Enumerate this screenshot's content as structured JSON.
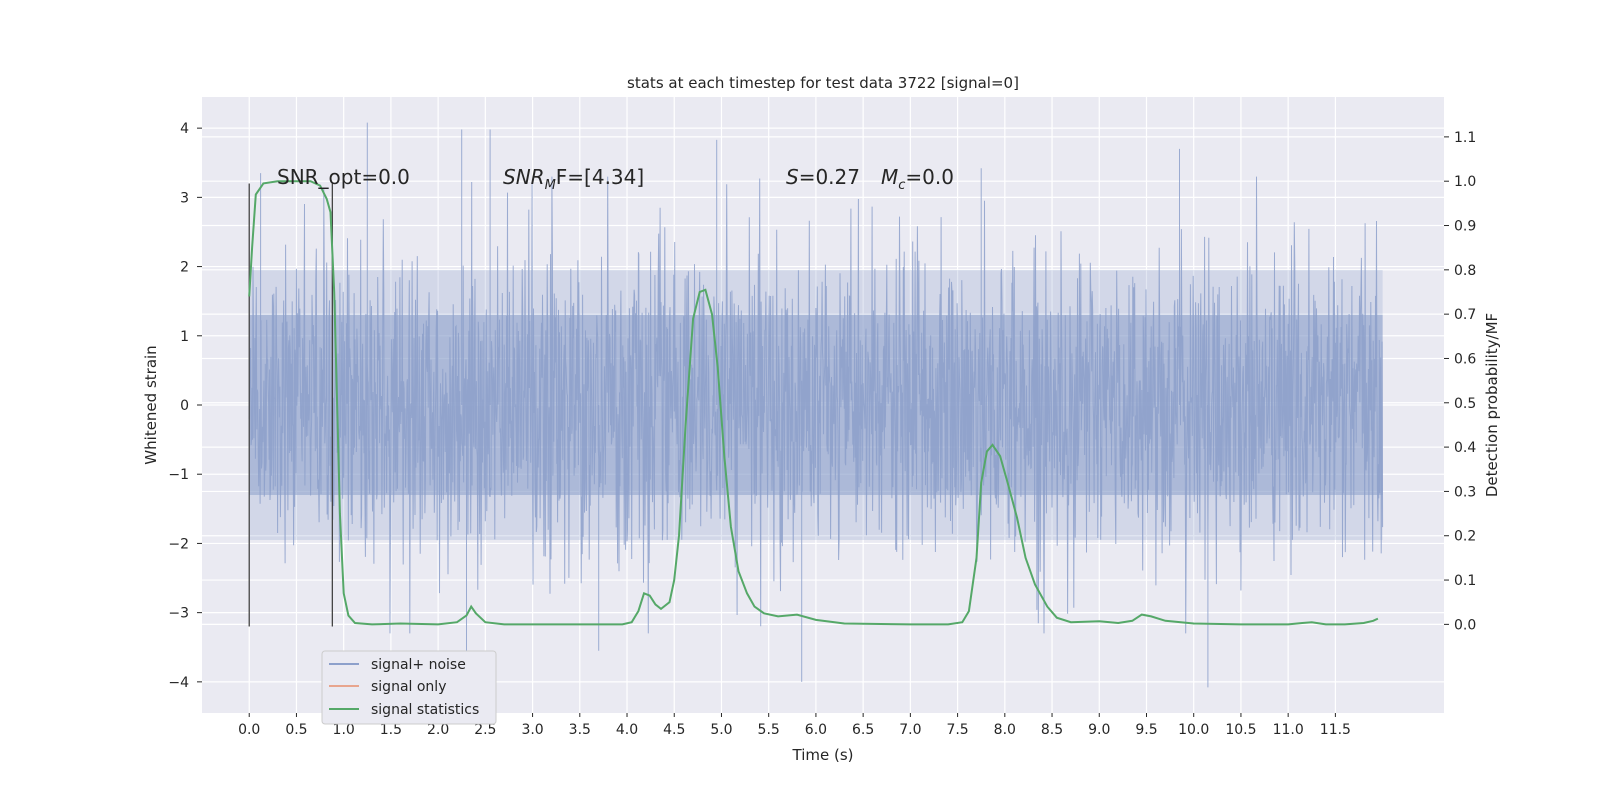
{
  "chart_data": {
    "type": "line",
    "title": "stats at each timestep for test data 3722 [signal=0]",
    "xlabel": "Time (s)",
    "ylabel": "Whitened strain",
    "y2label": "Detection probability/MF",
    "xlim": [
      -0.5,
      12.65
    ],
    "ylim": [
      -4.45,
      4.45
    ],
    "y2lim": [
      -0.2,
      1.19
    ],
    "x_ticks": [
      "0.0",
      "0.5",
      "1.0",
      "1.5",
      "2.0",
      "2.5",
      "3.0",
      "3.5",
      "4.0",
      "4.5",
      "5.0",
      "5.5",
      "6.0",
      "6.5",
      "7.0",
      "7.5",
      "8.0",
      "8.5",
      "9.0",
      "9.5",
      "10.0",
      "10.5",
      "11.0",
      "11.5"
    ],
    "y_ticks": [
      "4",
      "3",
      "2",
      "1",
      "0",
      "−1",
      "−2",
      "−3",
      "−4"
    ],
    "y2_ticks": [
      "1.1",
      "1.0",
      "0.9",
      "0.8",
      "0.7",
      "0.6",
      "0.5",
      "0.4",
      "0.3",
      "0.2",
      "0.1",
      "0.0"
    ],
    "grid": true,
    "legend_position": "bottom-left",
    "annotations": {
      "snr_opt": "SNR_opt=0.0",
      "snr_mf": "SNR",
      "snr_mf_sub": "M",
      "snr_mf_rest": "F=[4.34]",
      "s_label": "S",
      "s_value": "=0.27",
      "mc_label": "M",
      "mc_sub": "c",
      "mc_value": "=0.0"
    },
    "markers": {
      "window_start": 0.0,
      "window_end": 0.88,
      "y_range": [
        -3.2,
        3.2
      ]
    },
    "series": [
      {
        "name": "signal+ noise",
        "color": "#8da0cb",
        "style": "dense-noise",
        "x_range": [
          0.0,
          12.0
        ],
        "band_1sigma": 1.3,
        "band_2sigma": 1.95,
        "peaks": [
          {
            "x": 0.12,
            "y": 3.35
          },
          {
            "x": 1.25,
            "y": 4.08
          },
          {
            "x": 2.25,
            "y": 3.98
          },
          {
            "x": 2.55,
            "y": 3.98
          },
          {
            "x": 4.95,
            "y": 3.83
          },
          {
            "x": 5.85,
            "y": -4.0
          },
          {
            "x": 10.15,
            "y": -4.08
          },
          {
            "x": 9.85,
            "y": 3.7
          },
          {
            "x": 7.75,
            "y": 3.42
          },
          {
            "x": 2.3,
            "y": -3.65
          },
          {
            "x": 3.7,
            "y": -3.55
          }
        ]
      },
      {
        "name": "signal only",
        "color": "#e8a58e",
        "points": []
      },
      {
        "name": "signal statistics",
        "color": "#55a868",
        "axis": "right",
        "points": [
          [
            0.0,
            0.74
          ],
          [
            0.03,
            0.85
          ],
          [
            0.07,
            0.97
          ],
          [
            0.15,
            0.995
          ],
          [
            0.3,
            1.0
          ],
          [
            0.5,
            1.0
          ],
          [
            0.65,
            1.0
          ],
          [
            0.75,
            0.99
          ],
          [
            0.82,
            0.96
          ],
          [
            0.86,
            0.93
          ],
          [
            0.9,
            0.75
          ],
          [
            0.93,
            0.5
          ],
          [
            0.96,
            0.25
          ],
          [
            1.0,
            0.07
          ],
          [
            1.05,
            0.02
          ],
          [
            1.12,
            0.003
          ],
          [
            1.3,
            0.0
          ],
          [
            1.6,
            0.002
          ],
          [
            2.0,
            0.0
          ],
          [
            2.2,
            0.005
          ],
          [
            2.3,
            0.02
          ],
          [
            2.35,
            0.04
          ],
          [
            2.4,
            0.025
          ],
          [
            2.5,
            0.005
          ],
          [
            2.7,
            0.0
          ],
          [
            3.5,
            0.0
          ],
          [
            3.95,
            0.0
          ],
          [
            4.05,
            0.005
          ],
          [
            4.12,
            0.03
          ],
          [
            4.18,
            0.07
          ],
          [
            4.24,
            0.065
          ],
          [
            4.3,
            0.045
          ],
          [
            4.36,
            0.035
          ],
          [
            4.45,
            0.05
          ],
          [
            4.5,
            0.1
          ],
          [
            4.55,
            0.2
          ],
          [
            4.62,
            0.45
          ],
          [
            4.7,
            0.69
          ],
          [
            4.77,
            0.75
          ],
          [
            4.83,
            0.755
          ],
          [
            4.9,
            0.7
          ],
          [
            4.96,
            0.58
          ],
          [
            5.03,
            0.38
          ],
          [
            5.1,
            0.22
          ],
          [
            5.18,
            0.12
          ],
          [
            5.27,
            0.07
          ],
          [
            5.35,
            0.04
          ],
          [
            5.45,
            0.025
          ],
          [
            5.6,
            0.018
          ],
          [
            5.8,
            0.022
          ],
          [
            6.0,
            0.01
          ],
          [
            6.3,
            0.002
          ],
          [
            7.0,
            0.0
          ],
          [
            7.4,
            0.0
          ],
          [
            7.55,
            0.005
          ],
          [
            7.62,
            0.03
          ],
          [
            7.7,
            0.15
          ],
          [
            7.75,
            0.32
          ],
          [
            7.81,
            0.39
          ],
          [
            7.87,
            0.405
          ],
          [
            7.95,
            0.38
          ],
          [
            8.03,
            0.32
          ],
          [
            8.13,
            0.24
          ],
          [
            8.22,
            0.15
          ],
          [
            8.32,
            0.09
          ],
          [
            8.45,
            0.04
          ],
          [
            8.55,
            0.015
          ],
          [
            8.7,
            0.005
          ],
          [
            9.0,
            0.007
          ],
          [
            9.2,
            0.003
          ],
          [
            9.35,
            0.008
          ],
          [
            9.45,
            0.022
          ],
          [
            9.55,
            0.018
          ],
          [
            9.7,
            0.008
          ],
          [
            10.0,
            0.002
          ],
          [
            10.5,
            0.0
          ],
          [
            11.0,
            0.0
          ],
          [
            11.15,
            0.003
          ],
          [
            11.25,
            0.005
          ],
          [
            11.4,
            0.0
          ],
          [
            11.6,
            0.0
          ],
          [
            11.8,
            0.003
          ],
          [
            11.9,
            0.008
          ],
          [
            11.95,
            0.013
          ]
        ]
      }
    ]
  }
}
